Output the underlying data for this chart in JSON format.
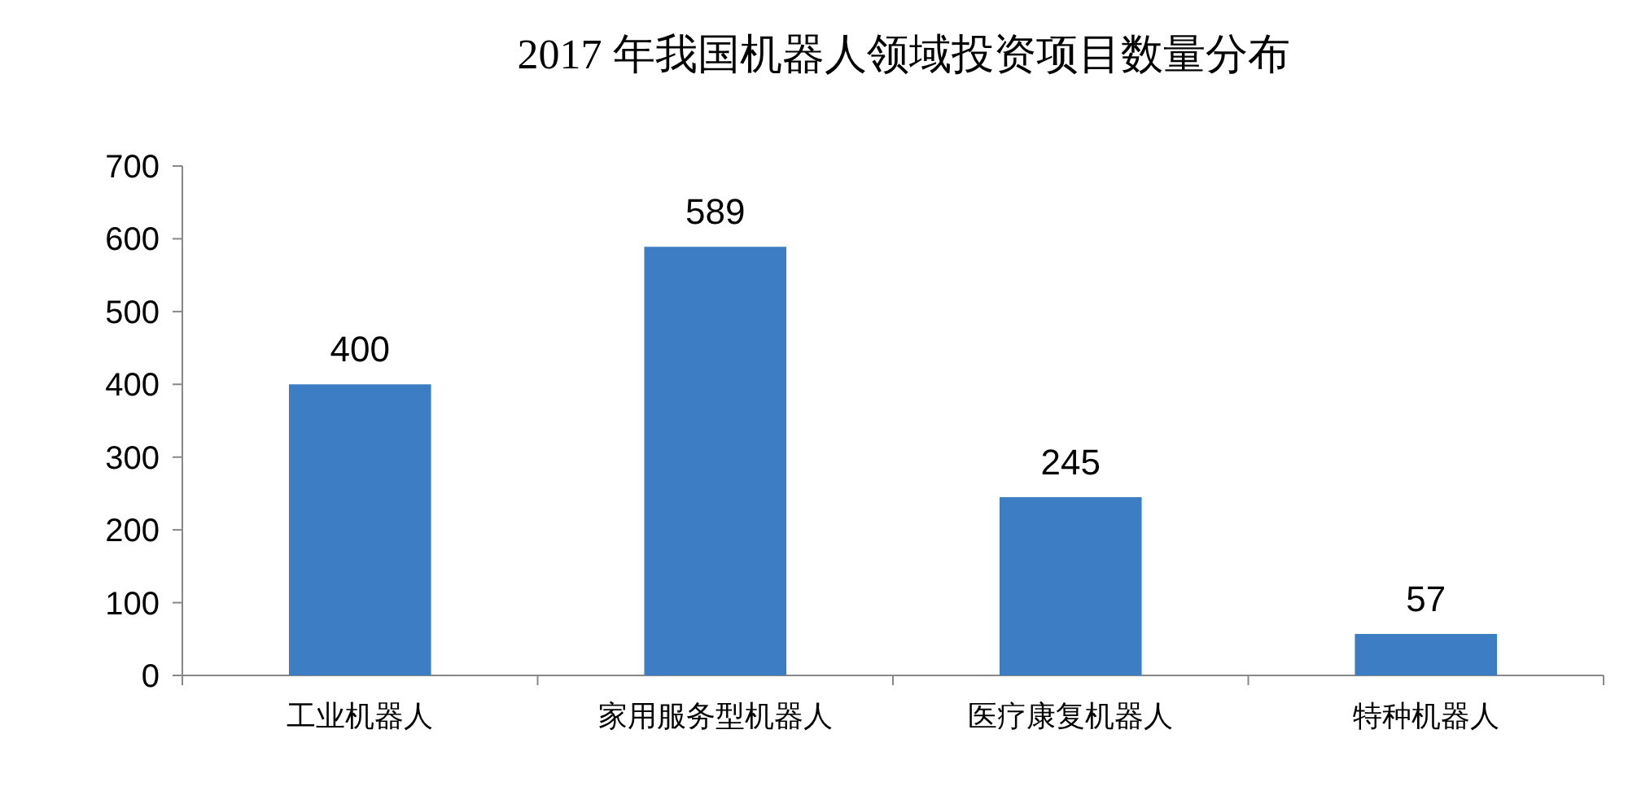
{
  "chart_data": {
    "type": "bar",
    "title": "2017 年我国机器人领域投资项目数量分布",
    "categories": [
      "工业机器人",
      "家用服务型机器人",
      "医疗康复机器人",
      "特种机器人"
    ],
    "values": [
      400,
      589,
      245,
      57
    ],
    "color": "#3c7dc4",
    "ylim": [
      0,
      700
    ],
    "yticks": [
      0,
      100,
      200,
      300,
      400,
      500,
      600,
      700
    ],
    "data_labels": true
  }
}
